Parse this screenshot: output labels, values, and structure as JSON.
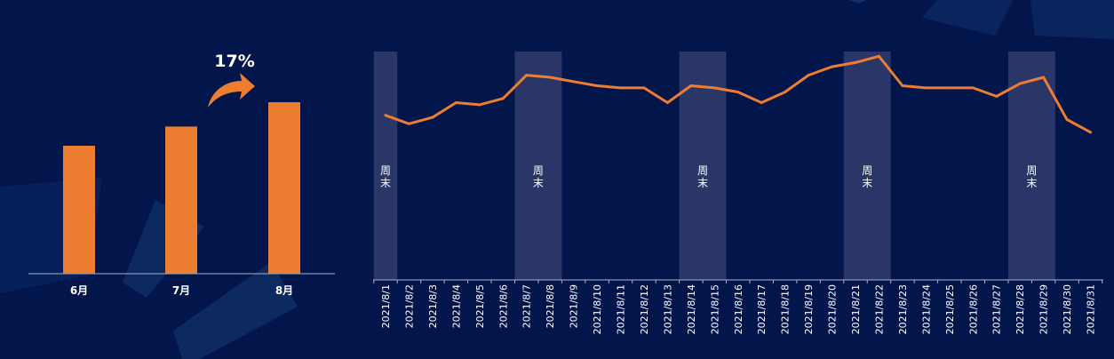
{
  "chart_data": [
    {
      "type": "bar",
      "categories": [
        "6月",
        "7月",
        "8月"
      ],
      "values": [
        100,
        115,
        134
      ],
      "ylim": [
        0,
        150
      ],
      "growth_annotation": "17%",
      "colors": {
        "bar": "#ed7d31",
        "axis": "#a9b1c8"
      }
    },
    {
      "type": "line",
      "x": [
        "2021/8/1",
        "2021/8/2",
        "2021/8/3",
        "2021/8/4",
        "2021/8/5",
        "2021/8/6",
        "2021/8/7",
        "2021/8/8",
        "2021/8/9",
        "2021/8/10",
        "2021/8/11",
        "2021/8/12",
        "2021/8/13",
        "2021/8/14",
        "2021/8/15",
        "2021/8/16",
        "2021/8/17",
        "2021/8/18",
        "2021/8/19",
        "2021/8/20",
        "2021/8/21",
        "2021/8/22",
        "2021/8/23",
        "2021/8/24",
        "2021/8/25",
        "2021/8/26",
        "2021/8/27",
        "2021/8/28",
        "2021/8/29",
        "2021/8/30",
        "2021/8/31"
      ],
      "values": [
        79,
        77,
        78.5,
        82,
        81.5,
        83,
        88.5,
        88,
        87,
        86,
        85.5,
        85.5,
        82,
        86,
        85.5,
        84.5,
        82,
        84.5,
        88.5,
        90.5,
        91.5,
        93,
        86,
        85.5,
        85.5,
        85.5,
        83.5,
        86.5,
        88,
        78,
        75
      ],
      "ylim": [
        40,
        100
      ],
      "weekend_bands": [
        {
          "from": "2021/8/1",
          "to": "2021/8/1",
          "label": "周末"
        },
        {
          "from": "2021/8/7",
          "to": "2021/8/8",
          "label": "周末"
        },
        {
          "from": "2021/8/14",
          "to": "2021/8/15",
          "label": "周末"
        },
        {
          "from": "2021/8/21",
          "to": "2021/8/22",
          "label": "周末"
        },
        {
          "from": "2021/8/28",
          "to": "2021/8/29",
          "label": "周末"
        }
      ],
      "colors": {
        "line": "#ed7d31",
        "band": "#2d3a6a",
        "axis": "#a9b1c8"
      }
    }
  ]
}
